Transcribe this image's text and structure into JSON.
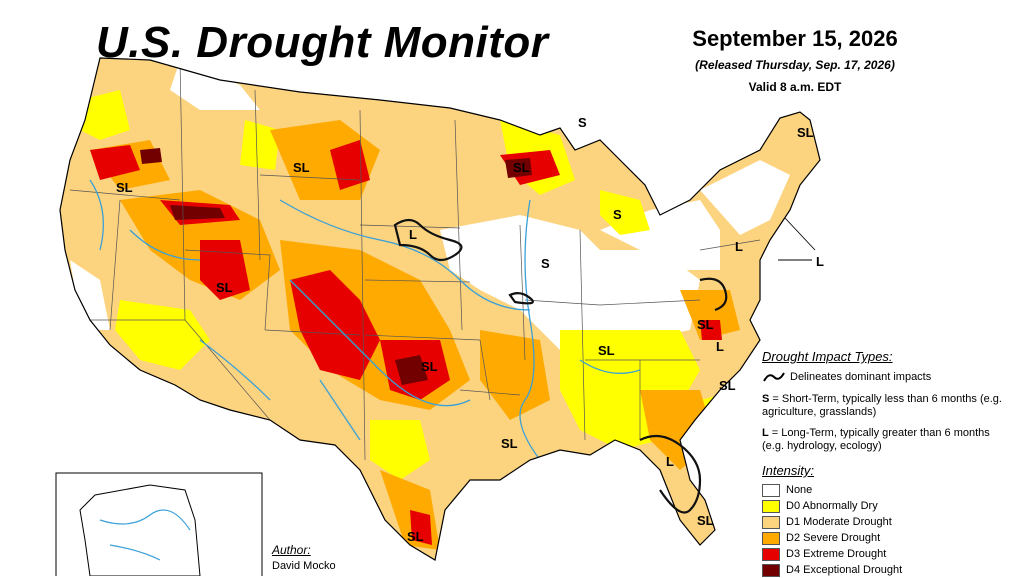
{
  "header": {
    "title": "U.S. Drought Monitor",
    "date": "September 15, 2026",
    "released": "(Released Thursday, Sep. 17, 2026)",
    "valid": "Valid 8 a.m. EDT"
  },
  "impact_legend": {
    "title": "Drought Impact Types:",
    "line_desc": "Delineates dominant impacts",
    "s_key": "S",
    "s_desc": " = Short-Term, typically less than 6 months (e.g. agriculture, grasslands)",
    "l_key": "L",
    "l_desc": " = Long-Term, typically greater than 6 months (e.g. hydrology, ecology)"
  },
  "intensity_legend": {
    "title": "Intensity:",
    "items": [
      {
        "label": "None",
        "color": "#ffffff"
      },
      {
        "label": "D0 Abnormally Dry",
        "color": "#ffff00"
      },
      {
        "label": "D1 Moderate Drought",
        "color": "#fcd37f"
      },
      {
        "label": "D2 Severe Drought",
        "color": "#ffaa00"
      },
      {
        "label": "D3 Extreme Drought",
        "color": "#e60000"
      },
      {
        "label": "D4 Exceptional Drought",
        "color": "#730000"
      }
    ]
  },
  "author": {
    "title": "Author:",
    "name": "David Mocko"
  },
  "map_labels": [
    {
      "text": "SL"
    },
    {
      "text": "SL"
    },
    {
      "text": "SL"
    },
    {
      "text": "SL"
    },
    {
      "text": "SL"
    },
    {
      "text": "SL"
    },
    {
      "text": "SL"
    },
    {
      "text": "SL"
    },
    {
      "text": "SL"
    },
    {
      "text": "SL"
    },
    {
      "text": "SL"
    },
    {
      "text": "SL"
    },
    {
      "text": "S"
    },
    {
      "text": "S"
    },
    {
      "text": "S"
    },
    {
      "text": "L"
    },
    {
      "text": "L"
    },
    {
      "text": "L"
    },
    {
      "text": "L"
    },
    {
      "text": "L"
    }
  ]
}
